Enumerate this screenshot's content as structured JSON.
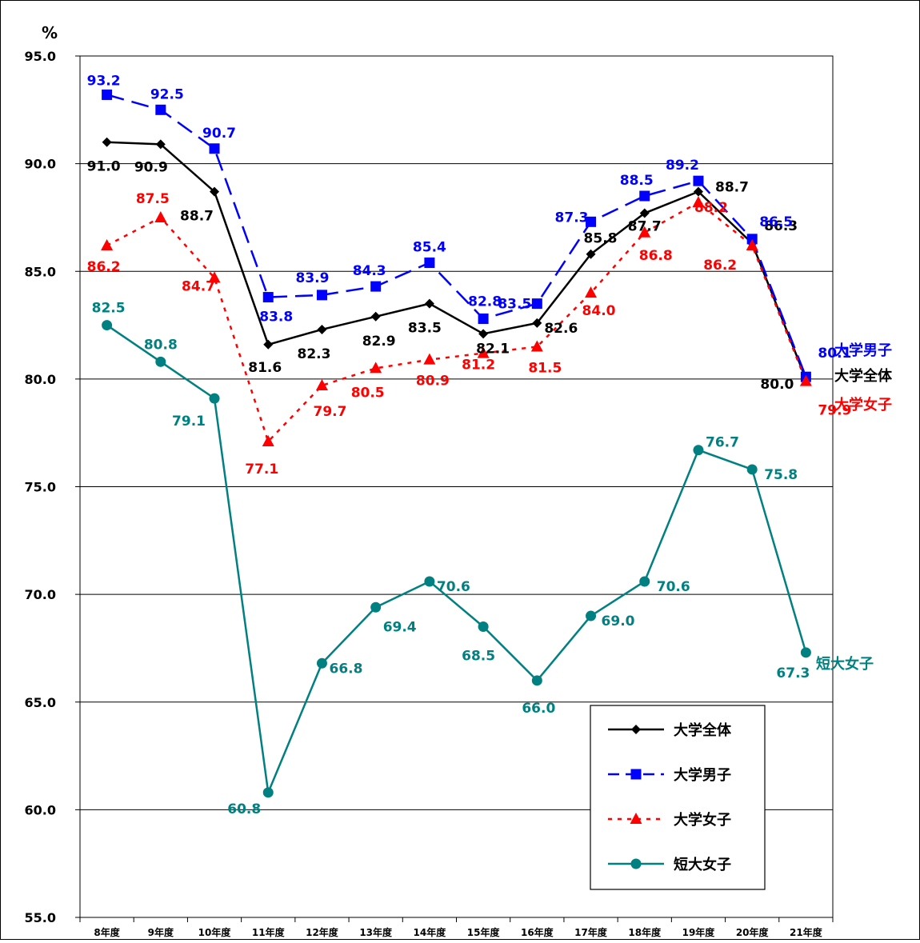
{
  "chart_data": {
    "type": "line",
    "y_unit": "%",
    "ylim": [
      55,
      95
    ],
    "yticks": [
      55,
      60,
      65,
      70,
      75,
      80,
      85,
      90,
      95
    ],
    "ytick_labels": [
      "55.0",
      "60.0",
      "65.0",
      "70.0",
      "75.0",
      "80.0",
      "85.0",
      "90.0",
      "95.0"
    ],
    "grid": true,
    "legend_position": "lower-right",
    "categories": [
      "8年度",
      "9年度",
      "10年度",
      "11年度",
      "12年度",
      "13年度",
      "14年度",
      "15年度",
      "16年度",
      "17年度",
      "18年度",
      "19年度",
      "20年度",
      "21年度"
    ],
    "series": [
      {
        "name": "大学全体",
        "color": "#000000",
        "marker": "diamond",
        "dash": "solid",
        "values": [
          91.0,
          90.9,
          88.7,
          81.6,
          82.3,
          82.9,
          83.5,
          82.1,
          82.6,
          85.8,
          87.7,
          88.7,
          86.3,
          80.0
        ]
      },
      {
        "name": "大学男子",
        "color": "#0000ff",
        "marker": "square",
        "dash": "dashed",
        "values": [
          93.2,
          92.5,
          90.7,
          83.8,
          83.9,
          84.3,
          85.4,
          82.8,
          83.5,
          87.3,
          88.5,
          89.2,
          86.5,
          80.1
        ]
      },
      {
        "name": "大学女子",
        "color": "#ff0000",
        "marker": "triangle",
        "dash": "dotted",
        "values": [
          86.2,
          87.5,
          84.7,
          77.1,
          79.7,
          80.5,
          80.9,
          81.2,
          81.5,
          84.0,
          86.8,
          88.2,
          86.2,
          79.9
        ]
      },
      {
        "name": "短大女子",
        "color": "#008080",
        "marker": "circle",
        "dash": "solid",
        "values": [
          82.5,
          80.8,
          79.1,
          60.8,
          66.8,
          69.4,
          70.6,
          68.5,
          66.0,
          69.0,
          70.6,
          76.7,
          75.8,
          67.3
        ]
      }
    ]
  }
}
